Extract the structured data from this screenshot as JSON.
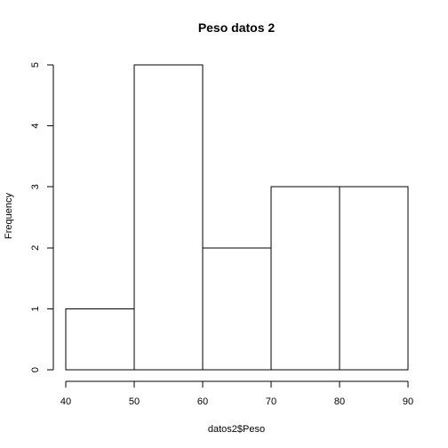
{
  "chart_data": {
    "type": "bar",
    "title": "Peso datos 2",
    "xlabel": "datos2$Peso",
    "ylabel": "Frequency",
    "bins": [
      {
        "start": 40,
        "end": 50,
        "count": 1
      },
      {
        "start": 50,
        "end": 60,
        "count": 5
      },
      {
        "start": 60,
        "end": 70,
        "count": 2
      },
      {
        "start": 70,
        "end": 80,
        "count": 3
      },
      {
        "start": 80,
        "end": 90,
        "count": 3
      }
    ],
    "xlim": [
      40,
      90
    ],
    "ylim": [
      0,
      5
    ],
    "x_ticks": [
      40,
      50,
      60,
      70,
      80,
      90
    ],
    "y_ticks": [
      0,
      1,
      2,
      3,
      4,
      5
    ],
    "grid": false,
    "colors": {
      "bar_fill": "#ffffff",
      "bar_stroke": "#000000",
      "axis": "#000000",
      "text": "#000000"
    }
  }
}
